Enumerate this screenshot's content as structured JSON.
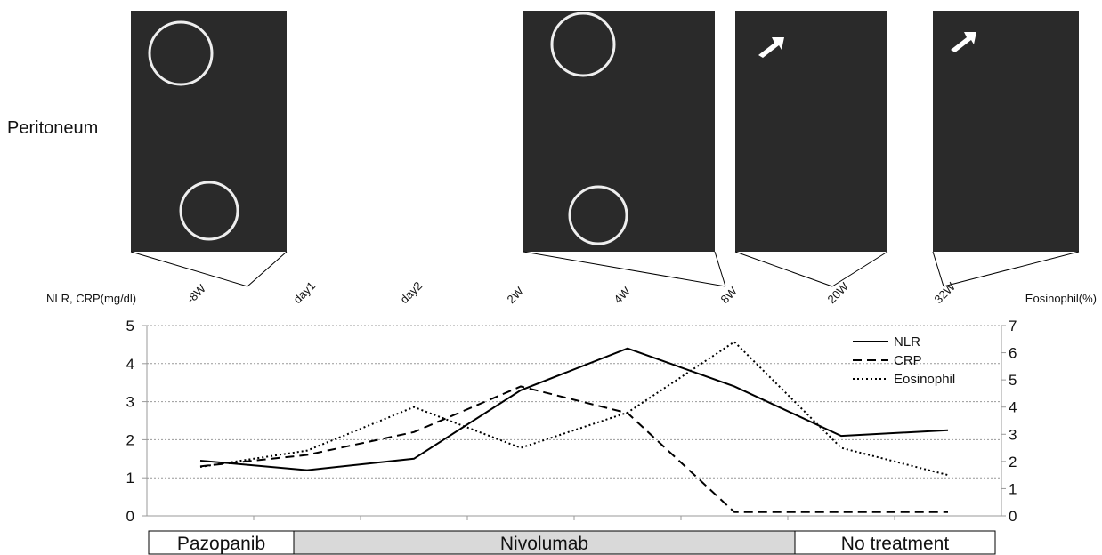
{
  "chart_data": {
    "type": "line",
    "panel_label": "Peritoneum",
    "ylabel": "NLR, CRP(mg/dl)",
    "y2label": "Eosinophil(%)",
    "categories": [
      "-8W",
      "day1",
      "day2",
      "2W",
      "4W",
      "8W",
      "20W",
      "32W"
    ],
    "series": [
      {
        "name": "NLR",
        "color": "#000000",
        "dash": "solid",
        "values": [
          1.45,
          1.2,
          1.5,
          3.3,
          4.4,
          3.4,
          2.1,
          2.25
        ]
      },
      {
        "name": "CRP",
        "color": "#000000",
        "dash": "dashed",
        "values": [
          1.3,
          1.6,
          2.2,
          3.4,
          2.7,
          0.1,
          0.1,
          0.1
        ]
      },
      {
        "name": "Eosinophil",
        "color": "#000000",
        "dash": "dotted",
        "axis": "y2",
        "values": [
          1.8,
          2.4,
          4.0,
          2.5,
          3.8,
          6.4,
          2.5,
          1.5
        ]
      }
    ],
    "ylim": [
      0,
      5
    ],
    "yticks": [
      0,
      1,
      2,
      3,
      4,
      5
    ],
    "y2lim": [
      0,
      7
    ],
    "y2ticks": [
      0,
      1,
      2,
      3,
      4,
      5,
      6,
      7
    ],
    "grid": true,
    "legend": "upper right",
    "treatments": [
      "Pazopanib",
      "Nivolumab",
      "No treatment"
    ]
  }
}
